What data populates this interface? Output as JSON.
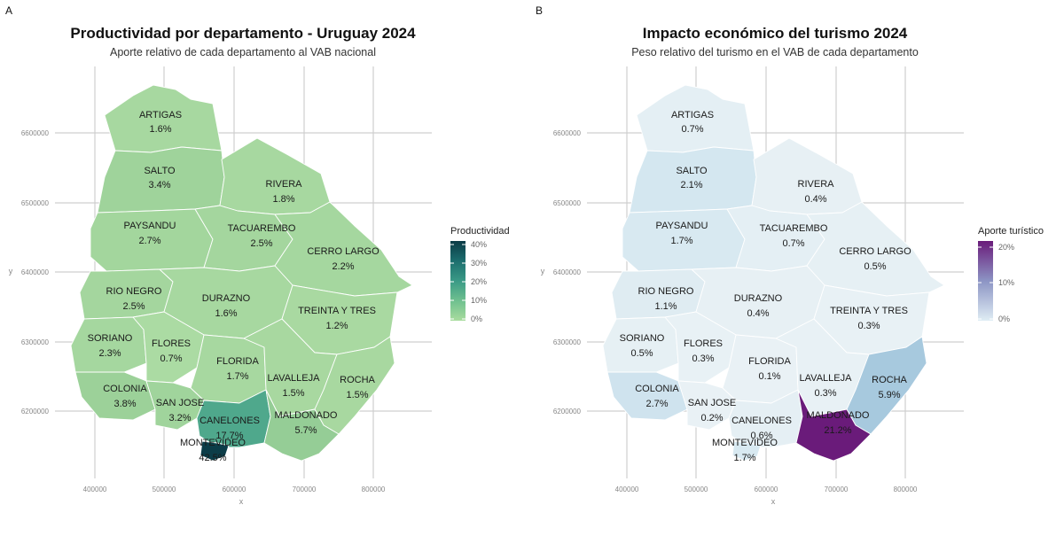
{
  "panels": [
    {
      "tag": "A",
      "title": "Productividad por departamento - Uruguay 2024",
      "subtitle": "Aporte relativo de cada departamento al VAB nacional",
      "x_label": "x",
      "y_label": "y",
      "x_ticks": [
        "400000",
        "500000",
        "600000",
        "700000",
        "800000"
      ],
      "y_ticks": [
        "6600000",
        "6500000",
        "6400000",
        "6300000",
        "6200000"
      ],
      "legend_title": "Productividad",
      "legend_ticks": [
        "40%",
        "30%",
        "20%",
        "10%",
        "0%"
      ],
      "legend_colors": [
        "#0b3b46",
        "#1c6e6e",
        "#3a9a86",
        "#6fc08f",
        "#a9dc9e"
      ],
      "departments": [
        {
          "name": "ARTIGAS",
          "value": "1.6%",
          "fill": "#a7d8a0"
        },
        {
          "name": "SALTO",
          "value": "3.4%",
          "fill": "#9fd39b"
        },
        {
          "name": "RIVERA",
          "value": "1.8%",
          "fill": "#a7d8a0"
        },
        {
          "name": "PAYSANDU",
          "value": "2.7%",
          "fill": "#a3d69d"
        },
        {
          "name": "TACUAREMBO",
          "value": "2.5%",
          "fill": "#a4d69e"
        },
        {
          "name": "CERRO LARGO",
          "value": "2.2%",
          "fill": "#a5d79f"
        },
        {
          "name": "RIO NEGRO",
          "value": "2.5%",
          "fill": "#a4d69e"
        },
        {
          "name": "DURAZNO",
          "value": "1.6%",
          "fill": "#a7d8a0"
        },
        {
          "name": "TREINTA Y TRES",
          "value": "1.2%",
          "fill": "#a9d9a1"
        },
        {
          "name": "SORIANO",
          "value": "2.3%",
          "fill": "#a5d79f"
        },
        {
          "name": "FLORES",
          "value": "0.7%",
          "fill": "#abdba3"
        },
        {
          "name": "FLORIDA",
          "value": "1.7%",
          "fill": "#a7d8a0"
        },
        {
          "name": "LAVALLEJA",
          "value": "1.5%",
          "fill": "#a8d8a0"
        },
        {
          "name": "ROCHA",
          "value": "1.5%",
          "fill": "#a8d8a0"
        },
        {
          "name": "COLONIA",
          "value": "3.8%",
          "fill": "#9cd199"
        },
        {
          "name": "SAN JOSE",
          "value": "3.2%",
          "fill": "#a0d49c"
        },
        {
          "name": "CANELONES",
          "value": "17.7%",
          "fill": "#4fa88c"
        },
        {
          "name": "MALDONADO",
          "value": "5.7%",
          "fill": "#95cd96"
        },
        {
          "name": "MONTEVIDEO",
          "value": "42.5%",
          "fill": "#0c3d48"
        }
      ]
    },
    {
      "tag": "B",
      "title": "Impacto económico del turismo 2024",
      "subtitle": "Peso relativo del turismo en el VAB de cada departamento",
      "x_label": "x",
      "y_label": "y",
      "x_ticks": [
        "400000",
        "500000",
        "600000",
        "700000",
        "800000"
      ],
      "y_ticks": [
        "6600000",
        "6500000",
        "6400000",
        "6300000",
        "6200000"
      ],
      "legend_title": "Aporte turístico",
      "legend_ticks": [
        "20%",
        "10%",
        "0%"
      ],
      "legend_colors": [
        "#6a1b7a",
        "#8c94c4",
        "#dfedf4"
      ],
      "departments": [
        {
          "name": "ARTIGAS",
          "value": "0.7%",
          "fill": "#e4eff4"
        },
        {
          "name": "SALTO",
          "value": "2.1%",
          "fill": "#d4e7f0"
        },
        {
          "name": "RIVERA",
          "value": "0.4%",
          "fill": "#e7f0f4"
        },
        {
          "name": "PAYSANDU",
          "value": "1.7%",
          "fill": "#d8e9f1"
        },
        {
          "name": "TACUAREMBO",
          "value": "0.7%",
          "fill": "#e4eff4"
        },
        {
          "name": "CERRO LARGO",
          "value": "0.5%",
          "fill": "#e6f0f4"
        },
        {
          "name": "RIO NEGRO",
          "value": "1.1%",
          "fill": "#dfecf2"
        },
        {
          "name": "DURAZNO",
          "value": "0.4%",
          "fill": "#e7f0f4"
        },
        {
          "name": "TREINTA Y TRES",
          "value": "0.3%",
          "fill": "#e8f1f5"
        },
        {
          "name": "SORIANO",
          "value": "0.5%",
          "fill": "#e6f0f4"
        },
        {
          "name": "FLORES",
          "value": "0.3%",
          "fill": "#e8f1f5"
        },
        {
          "name": "FLORIDA",
          "value": "0.1%",
          "fill": "#e9f1f5"
        },
        {
          "name": "LAVALLEJA",
          "value": "0.3%",
          "fill": "#e8f1f5"
        },
        {
          "name": "ROCHA",
          "value": "5.9%",
          "fill": "#a7c9de"
        },
        {
          "name": "COLONIA",
          "value": "2.7%",
          "fill": "#cfe3ee"
        },
        {
          "name": "SAN JOSE",
          "value": "0.2%",
          "fill": "#e9f1f5"
        },
        {
          "name": "CANELONES",
          "value": "0.6%",
          "fill": "#e5eff4"
        },
        {
          "name": "MALDONADO",
          "value": "21.2%",
          "fill": "#6a1b7a"
        },
        {
          "name": "MONTEVIDEO",
          "value": "1.7%",
          "fill": "#d8e9f1"
        }
      ]
    }
  ]
}
